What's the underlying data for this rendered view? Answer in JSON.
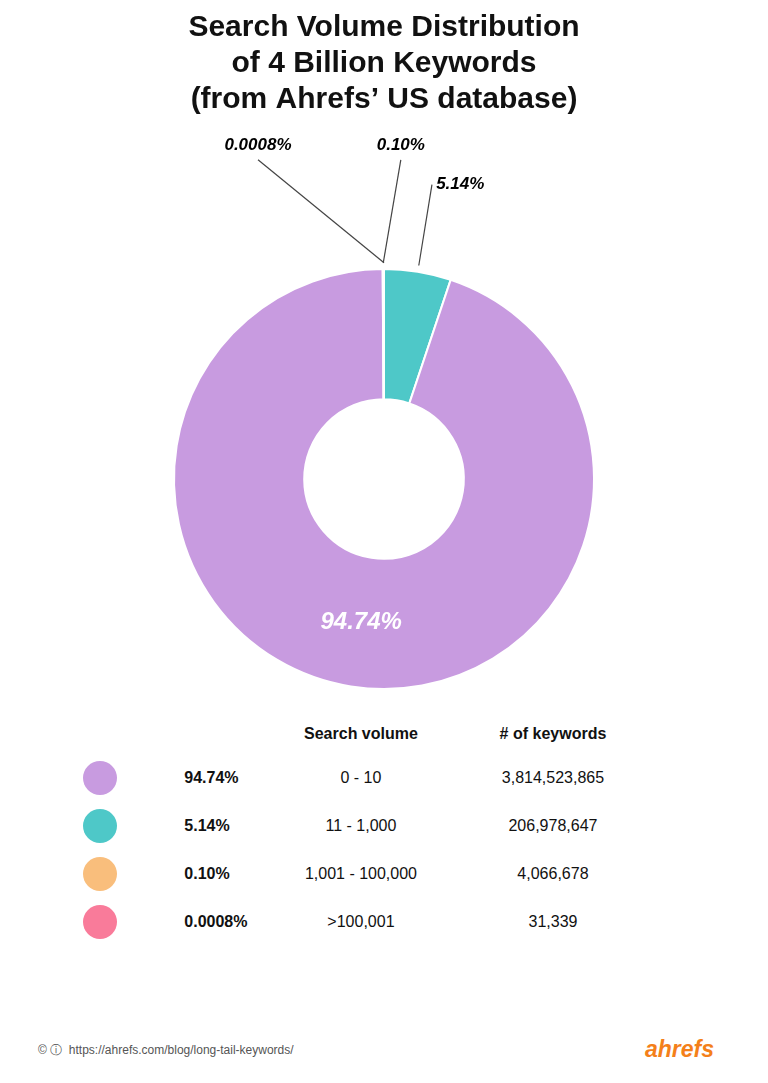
{
  "chart_data": {
    "type": "doughnut",
    "title": "Search Volume Distribution\nof 4 Billion Keywords\n(from Ahrefs’ US database)",
    "values": [
      5.14,
      94.74,
      0.1,
      0.0008
    ],
    "value_labels": [
      "5.14%",
      "94.74%",
      "0.10%",
      "0.0008%"
    ],
    "colors": [
      "#4EC8C8",
      "#C89BE0",
      "#F9BE7C",
      "#F97B9A"
    ],
    "data_labels": true,
    "table": {
      "headers": [
        "Search volume",
        "# of keywords"
      ],
      "rows": [
        {
          "color": "#C89BE0",
          "percent": "94.74%",
          "search_volume": "0 - 10",
          "keywords": "3,814,523,865"
        },
        {
          "color": "#4EC8C8",
          "percent": "5.14%",
          "search_volume": "11 - 1,000",
          "keywords": "206,978,647"
        },
        {
          "color": "#F9BE7C",
          "percent": "0.10%",
          "search_volume": "1,001 - 100,000",
          "keywords": "4,066,678"
        },
        {
          "color": "#F97B9A",
          "percent": "0.0008%",
          "search_volume": ">100,001",
          "keywords": "31,339"
        }
      ]
    },
    "footer": "© ⓘ  https://ahrefs.com/blog/long-tail-keywords/",
    "brand": "ahrefs",
    "brand_color": "#F4801A"
  }
}
